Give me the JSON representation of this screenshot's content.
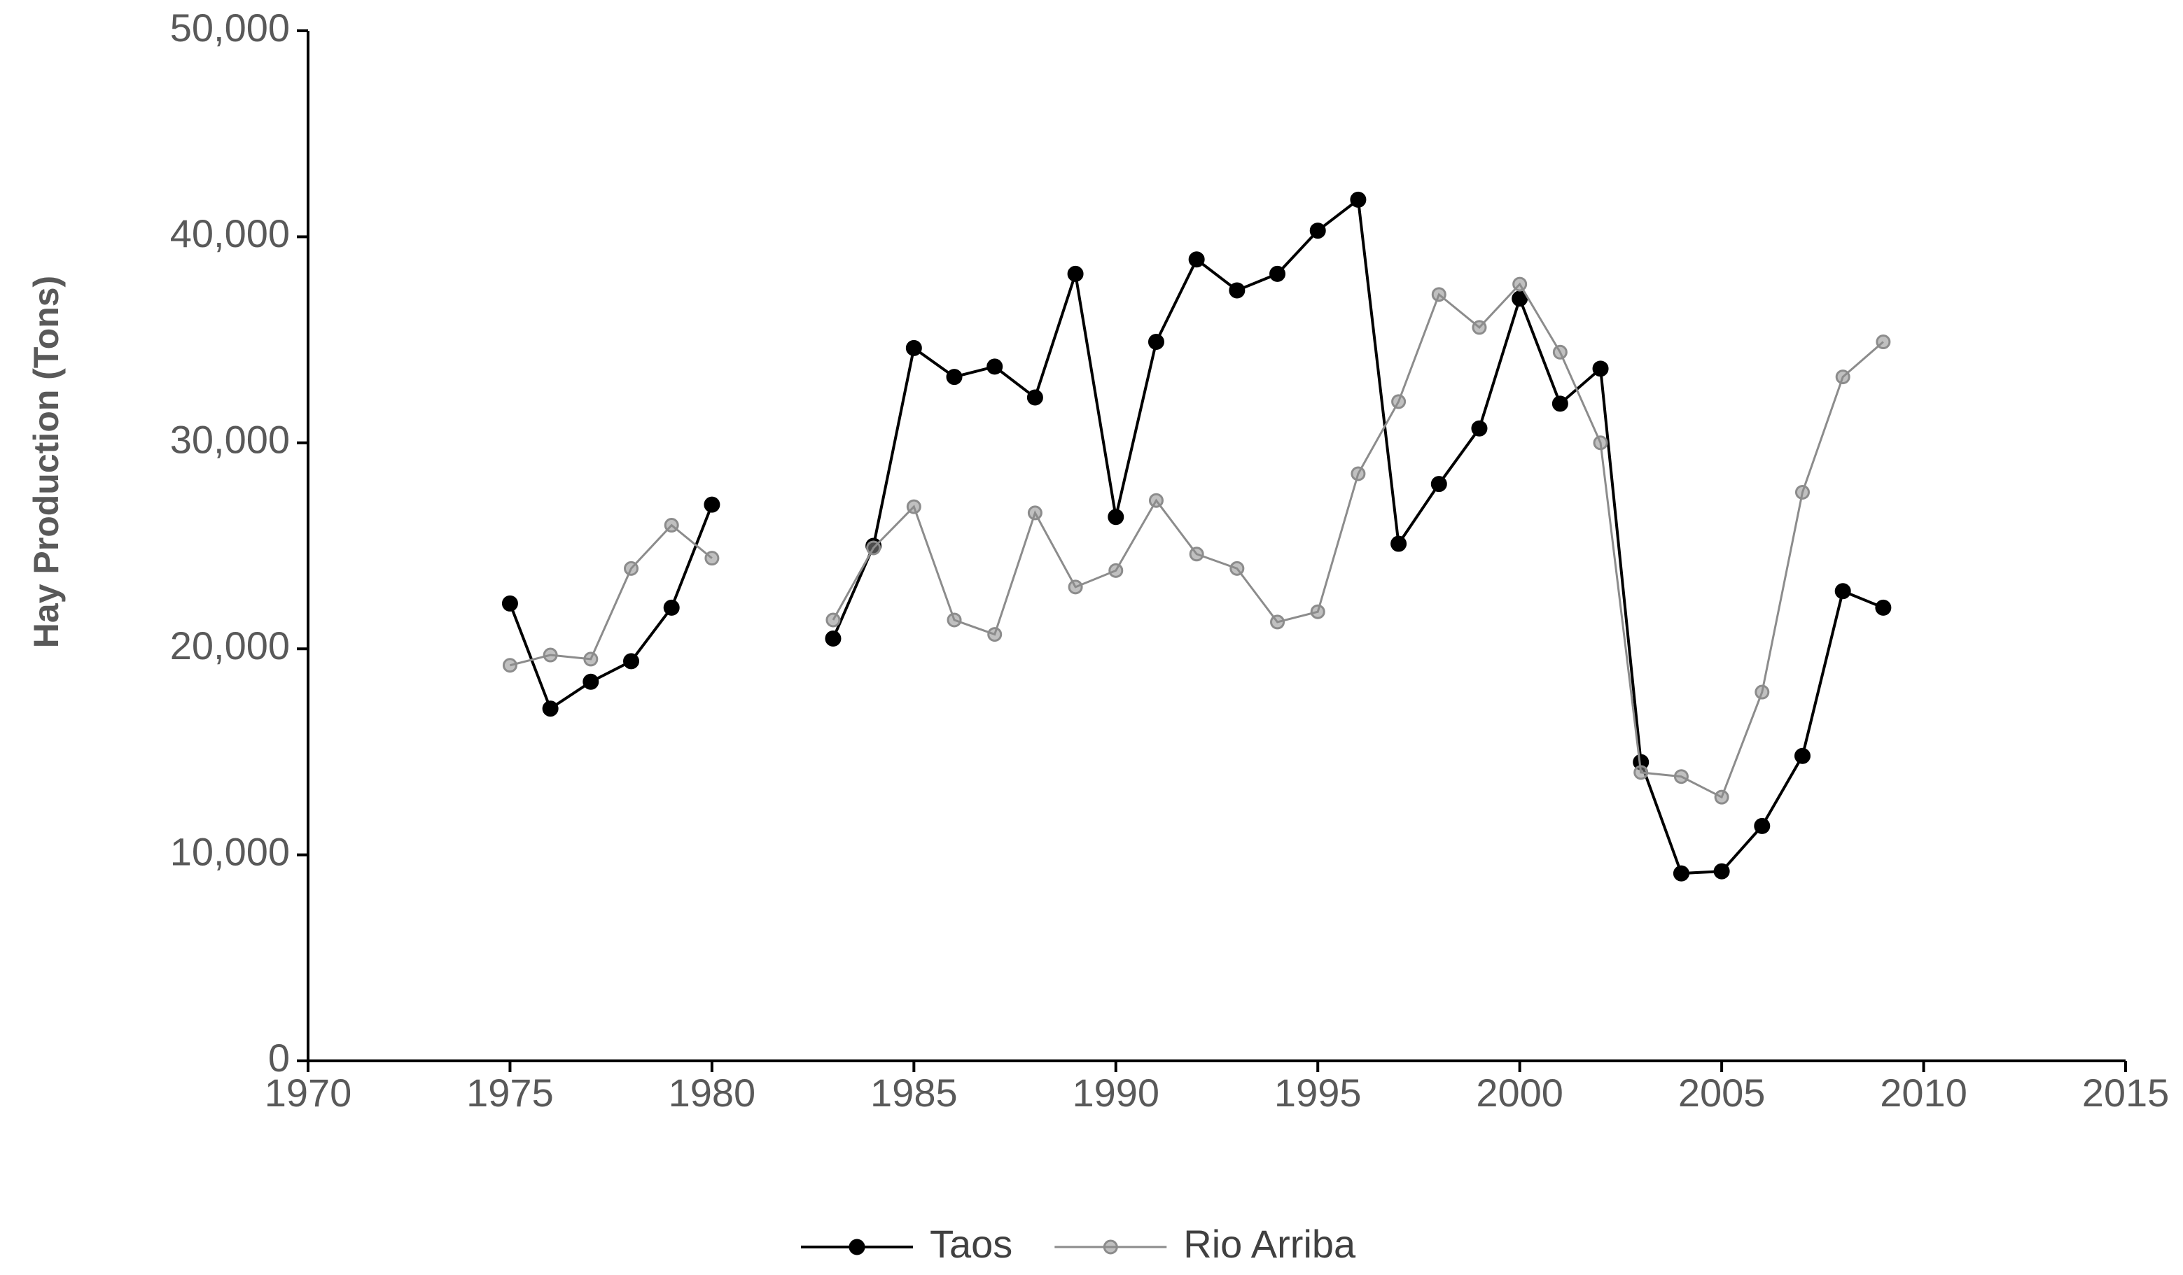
{
  "chart_data": {
    "type": "line",
    "y_label": "Hay Production (Tons)",
    "x": [
      1975,
      1976,
      1977,
      1978,
      1979,
      1980,
      1981,
      1982,
      1983,
      1984,
      1985,
      1986,
      1987,
      1988,
      1989,
      1990,
      1991,
      1992,
      1993,
      1994,
      1995,
      1996,
      1997,
      1998,
      1999,
      2000,
      2001,
      2002,
      2003,
      2004,
      2005,
      2006,
      2007,
      2008,
      2009
    ],
    "series": [
      {
        "name": "Taos",
        "color": "#000000",
        "values": [
          22200,
          17100,
          18400,
          19400,
          22000,
          27000,
          null,
          null,
          20500,
          25000,
          34600,
          33200,
          33700,
          32200,
          38200,
          26400,
          34900,
          38900,
          37400,
          38200,
          40300,
          41800,
          25100,
          28000,
          30700,
          37000,
          31900,
          33600,
          14500,
          9100,
          9200,
          11400,
          14800,
          22800,
          22000
        ]
      },
      {
        "name": "Rio Arriba",
        "color": "#8c8c8c",
        "values": [
          19200,
          19700,
          19500,
          23900,
          26000,
          24400,
          null,
          null,
          21400,
          24900,
          26900,
          21400,
          20700,
          26600,
          23000,
          23800,
          27200,
          24600,
          23900,
          21300,
          21800,
          28500,
          32000,
          37200,
          35600,
          37700,
          34400,
          30000,
          14000,
          13800,
          12800,
          17900,
          27600,
          33200,
          34900
        ]
      }
    ],
    "xlim": [
      1970,
      2015
    ],
    "xticks": [
      1970,
      1975,
      1980,
      1985,
      1990,
      1995,
      2000,
      2005,
      2010,
      2015
    ],
    "ylim": [
      0,
      50000
    ],
    "yticks": [
      0,
      {
        "value": 10000,
        "label": "10,000"
      },
      {
        "value": 20000,
        "label": "20,000"
      },
      {
        "value": 30000,
        "label": "30,000"
      },
      {
        "value": 40000,
        "label": "40,000"
      },
      {
        "value": 50000,
        "label": "50,000"
      }
    ],
    "legend": "bottom"
  }
}
